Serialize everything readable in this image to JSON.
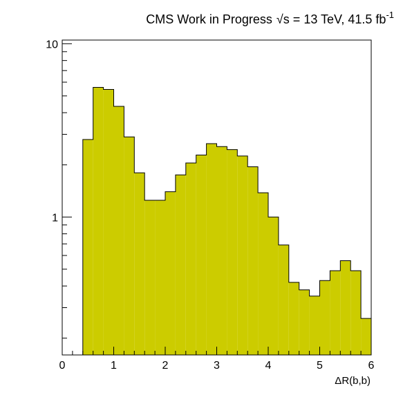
{
  "chart_data": {
    "type": "bar",
    "title_main": "CMS Work in Progress",
    "title_energy": "√s = 13 TeV, 41.5 fb",
    "title_exponent": "-1",
    "xlabel": "ΔR(b,b)",
    "ylabel": "",
    "xlim": [
      0,
      6
    ],
    "ylim": [
      0.16,
      10.5
    ],
    "y_scale": "log",
    "x_ticks": [
      "0",
      "1",
      "2",
      "3",
      "4",
      "5",
      "6"
    ],
    "y_ticks": [
      "1",
      "10"
    ],
    "fill_color": "#cccc00",
    "line_color": "#000000",
    "bin_edges": [
      0.4,
      0.6,
      0.8,
      1.0,
      1.2,
      1.4,
      1.6,
      1.8,
      2.0,
      2.2,
      2.4,
      2.6,
      2.8,
      3.0,
      3.2,
      3.4,
      3.6,
      3.8,
      4.0,
      4.2,
      4.4,
      4.6,
      4.8,
      5.0,
      5.2,
      5.4,
      5.6,
      5.8,
      6.0
    ],
    "values": [
      2.8,
      5.6,
      5.45,
      4.35,
      2.9,
      1.8,
      1.25,
      1.25,
      1.4,
      1.75,
      2.05,
      2.28,
      2.65,
      2.55,
      2.45,
      2.25,
      1.95,
      1.38,
      1.0,
      0.69,
      0.42,
      0.38,
      0.35,
      0.43,
      0.49,
      0.56,
      0.49,
      0.26
    ]
  }
}
